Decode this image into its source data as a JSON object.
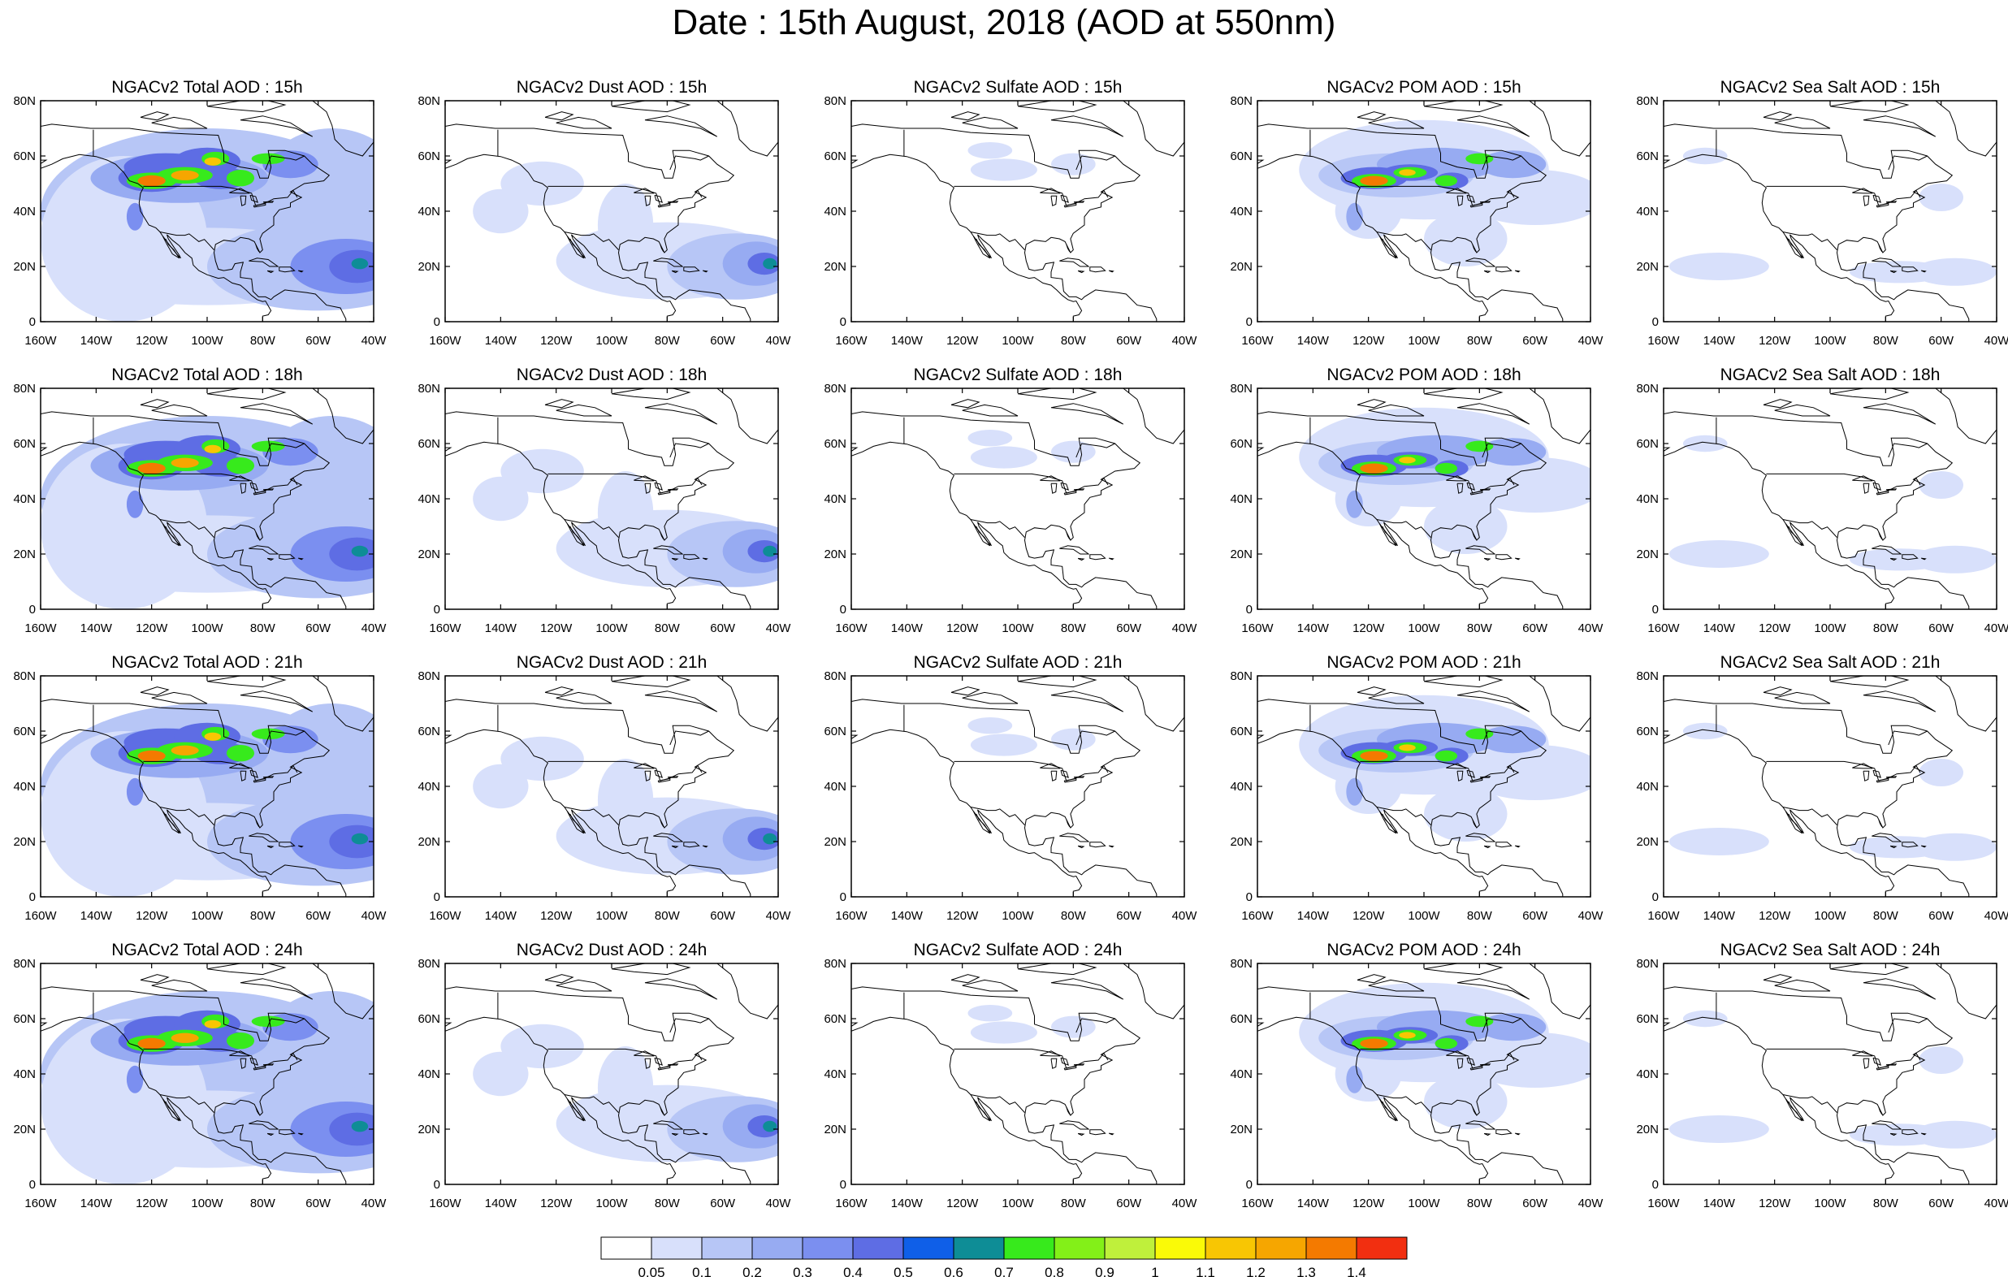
{
  "title": "Date : 15th August, 2018 (AOD at 550nm)",
  "grid": {
    "rows": [
      [
        "NGACv2 Total AOD : 15h",
        "NGACv2 Dust AOD : 15h",
        "NGACv2 Sulfate AOD : 15h",
        "NGACv2 POM AOD : 15h",
        "NGACv2 Sea Salt AOD : 15h"
      ],
      [
        "NGACv2 Total AOD : 18h",
        "NGACv2 Dust AOD : 18h",
        "NGACv2 Sulfate AOD : 18h",
        "NGACv2 POM AOD : 18h",
        "NGACv2 Sea Salt AOD : 18h"
      ],
      [
        "NGACv2 Total AOD : 21h",
        "NGACv2 Dust AOD : 21h",
        "NGACv2 Sulfate AOD : 21h",
        "NGACv2 POM AOD : 21h",
        "NGACv2 Sea Salt AOD : 21h"
      ],
      [
        "NGACv2 Total AOD : 24h",
        "NGACv2 Dust AOD : 24h",
        "NGACv2 Sulfate AOD : 24h",
        "NGACv2 POM AOD : 24h",
        "NGACv2 Sea Salt  AOD : 24h"
      ]
    ],
    "species": [
      "total",
      "dust",
      "sulfate",
      "pom",
      "seasalt"
    ]
  },
  "axes": {
    "lat_ticks": [
      "80N",
      "60N",
      "40N",
      "20N",
      "0"
    ],
    "lon_ticks": [
      "160W",
      "140W",
      "120W",
      "100W",
      "80W",
      "60W",
      "40W"
    ],
    "lat_range": [
      0,
      80
    ],
    "lon_range": [
      -160,
      -40
    ]
  },
  "colorbar": {
    "colors": [
      "#ffffff",
      "#d8e0fb",
      "#b7c6f6",
      "#97abf2",
      "#7b8ff0",
      "#5e6de4",
      "#0f5fe8",
      "#0e8d96",
      "#37ea1c",
      "#83f018",
      "#bff03b",
      "#fafa07",
      "#f8c603",
      "#f6a600",
      "#f47a00",
      "#f22f10"
    ],
    "labels": [
      "0.05",
      "0.1",
      "0.2",
      "0.3",
      "0.4",
      "0.5",
      "0.6",
      "0.7",
      "0.8",
      "0.9",
      "1",
      "1.1",
      "1.2",
      "1.3",
      "1.4"
    ]
  }
}
